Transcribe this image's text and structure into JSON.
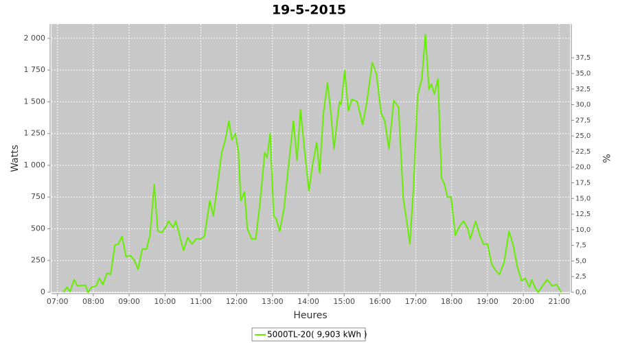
{
  "chart_data": {
    "type": "line",
    "title": "19-5-2015",
    "xlabel": "Heures",
    "ylabel": "Watts",
    "y2label": "%",
    "x": [
      "07:10",
      "07:16",
      "07:21",
      "07:28",
      "07:33",
      "07:47",
      "07:51",
      "07:57",
      "08:05",
      "08:10",
      "08:16",
      "08:23",
      "08:29",
      "08:36",
      "08:42",
      "08:48",
      "08:55",
      "09:02",
      "09:09",
      "09:15",
      "09:22",
      "09:29",
      "09:35",
      "09:42",
      "09:48",
      "09:55",
      "10:02",
      "10:06",
      "10:14",
      "10:18",
      "10:25",
      "10:31",
      "10:38",
      "10:45",
      "10:52",
      "11:00",
      "11:06",
      "11:15",
      "11:21",
      "11:28",
      "11:35",
      "11:41",
      "11:47",
      "11:52",
      "11:58",
      "12:03",
      "12:07",
      "12:13",
      "12:18",
      "12:25",
      "12:32",
      "12:39",
      "12:47",
      "12:51",
      "12:56",
      "13:02",
      "13:06",
      "13:12",
      "13:19",
      "13:27",
      "13:35",
      "13:41",
      "13:47",
      "13:54",
      "14:01",
      "14:07",
      "14:14",
      "14:19",
      "14:25",
      "14:32",
      "14:37",
      "14:43",
      "14:52",
      "14:55",
      "15:01",
      "15:07",
      "15:13",
      "15:22",
      "15:31",
      "15:38",
      "15:47",
      "15:54",
      "16:02",
      "16:08",
      "16:15",
      "16:23",
      "16:31",
      "16:39",
      "16:46",
      "16:50",
      "16:56",
      "17:03",
      "17:10",
      "17:16",
      "17:22",
      "17:26",
      "17:31",
      "17:37",
      "17:43",
      "17:48",
      "17:53",
      "17:59",
      "18:06",
      "18:13",
      "18:20",
      "18:27",
      "18:31",
      "18:40",
      "18:47",
      "18:53",
      "19:00",
      "19:07",
      "19:14",
      "19:20",
      "19:28",
      "19:36",
      "19:43",
      "19:50",
      "19:57",
      "20:03",
      "20:10",
      "20:14",
      "20:20",
      "20:25",
      "20:32",
      "20:40",
      "20:48",
      "20:56",
      "21:03"
    ],
    "series": [
      {
        "name": "5000TL-20( 9,903 kWh )",
        "color": "#66ee00",
        "values": [
          0,
          40,
          5,
          100,
          50,
          55,
          0,
          40,
          50,
          110,
          60,
          150,
          140,
          370,
          380,
          440,
          280,
          290,
          250,
          180,
          340,
          340,
          450,
          850,
          480,
          470,
          520,
          560,
          510,
          560,
          440,
          330,
          430,
          380,
          420,
          420,
          440,
          720,
          600,
          850,
          1100,
          1200,
          1350,
          1200,
          1250,
          1100,
          720,
          790,
          500,
          420,
          420,
          700,
          1100,
          1060,
          1250,
          600,
          580,
          480,
          650,
          1000,
          1350,
          1040,
          1440,
          1100,
          800,
          1000,
          1180,
          940,
          1400,
          1650,
          1450,
          1130,
          1500,
          1480,
          1750,
          1430,
          1520,
          1500,
          1320,
          1500,
          1810,
          1720,
          1410,
          1350,
          1130,
          1510,
          1460,
          740,
          520,
          380,
          820,
          1550,
          1680,
          2030,
          1600,
          1640,
          1560,
          1680,
          900,
          850,
          750,
          750,
          450,
          520,
          560,
          500,
          420,
          560,
          450,
          380,
          380,
          220,
          170,
          140,
          240,
          480,
          370,
          200,
          90,
          110,
          40,
          100,
          30,
          0,
          50,
          100,
          50,
          60,
          0
        ]
      }
    ],
    "xlim": [
      "06:50",
      "21:18"
    ],
    "xticks": [
      "07:00",
      "08:00",
      "09:00",
      "10:00",
      "11:00",
      "12:00",
      "13:00",
      "14:00",
      "15:00",
      "16:00",
      "17:00",
      "18:00",
      "19:00",
      "20:00",
      "21:00"
    ],
    "ylim": [
      0,
      2113
    ],
    "yticks": [
      0,
      250,
      500,
      750,
      {
        "value": 1000,
        "label": "1 000"
      },
      {
        "value": 1250,
        "label": "1 250"
      },
      {
        "value": 1500,
        "label": "1 500"
      },
      {
        "value": 1750,
        "label": "1 750"
      },
      {
        "value": 2000,
        "label": "2 000"
      }
    ],
    "y2lim": [
      0,
      42.9
    ],
    "y2ticks": [
      {
        "value": 0,
        "label": "0,0"
      },
      {
        "value": 2.5,
        "label": "2,5"
      },
      {
        "value": 5,
        "label": "5,0"
      },
      {
        "value": 7.5,
        "label": "7,5"
      },
      {
        "value": 10,
        "label": "10,0"
      },
      {
        "value": 12.5,
        "label": "12,5"
      },
      {
        "value": 15,
        "label": "15,0"
      },
      {
        "value": 17.5,
        "label": "17,5"
      },
      {
        "value": 20,
        "label": "20,0"
      },
      {
        "value": 22.5,
        "label": "22,5"
      },
      {
        "value": 25,
        "label": "25,0"
      },
      {
        "value": 27.5,
        "label": "27,5"
      },
      {
        "value": 30,
        "label": "30,0"
      },
      {
        "value": 32.5,
        "label": "32,5"
      },
      {
        "value": 35,
        "label": "35,0"
      },
      {
        "value": 37.5,
        "label": "37,5"
      }
    ],
    "grid": true,
    "legend": "bottom"
  }
}
